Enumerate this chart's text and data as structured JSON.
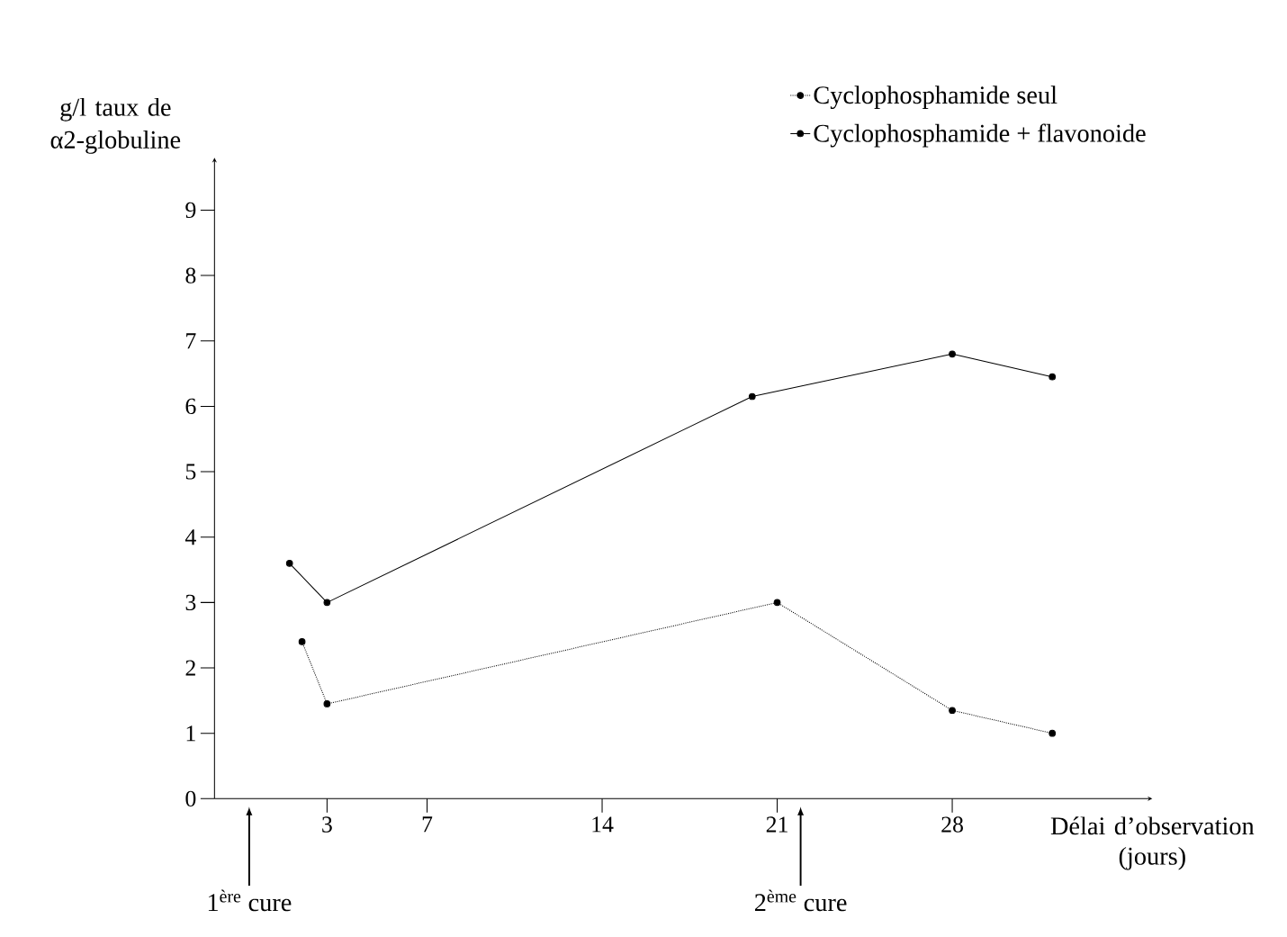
{
  "chart_data": {
    "type": "line",
    "xlabel": "Délai d’observation (jours)",
    "ylabel": "g/l taux de α2-globuline",
    "series": [
      {
        "name": "Cyclophosphamide seul",
        "color": "#000000",
        "line_style": "dotted",
        "x": [
          2,
          3,
          21,
          28,
          32
        ],
        "values": [
          2.4,
          1.45,
          3.0,
          1.35,
          1.0
        ]
      },
      {
        "name": "Cyclophosphamide + flavonoide",
        "color": "#000000",
        "line_style": "solid",
        "x": [
          1.5,
          3,
          20,
          28,
          32
        ],
        "values": [
          3.6,
          3.0,
          6.15,
          6.8,
          6.45
        ]
      }
    ],
    "xlim": [
      -1.5,
      36
    ],
    "ylim": [
      0,
      9.8
    ],
    "xticks": [
      3,
      7,
      14,
      21,
      28
    ],
    "yticks": [
      0,
      1,
      2,
      3,
      4,
      5,
      6,
      7,
      8,
      9
    ],
    "annotations": [
      "1$^{ère}$ cure",
      "2$^{ème}$ cure"
    ],
    "legend": "top right",
    "marker": "circle",
    "grid": false
  }
}
